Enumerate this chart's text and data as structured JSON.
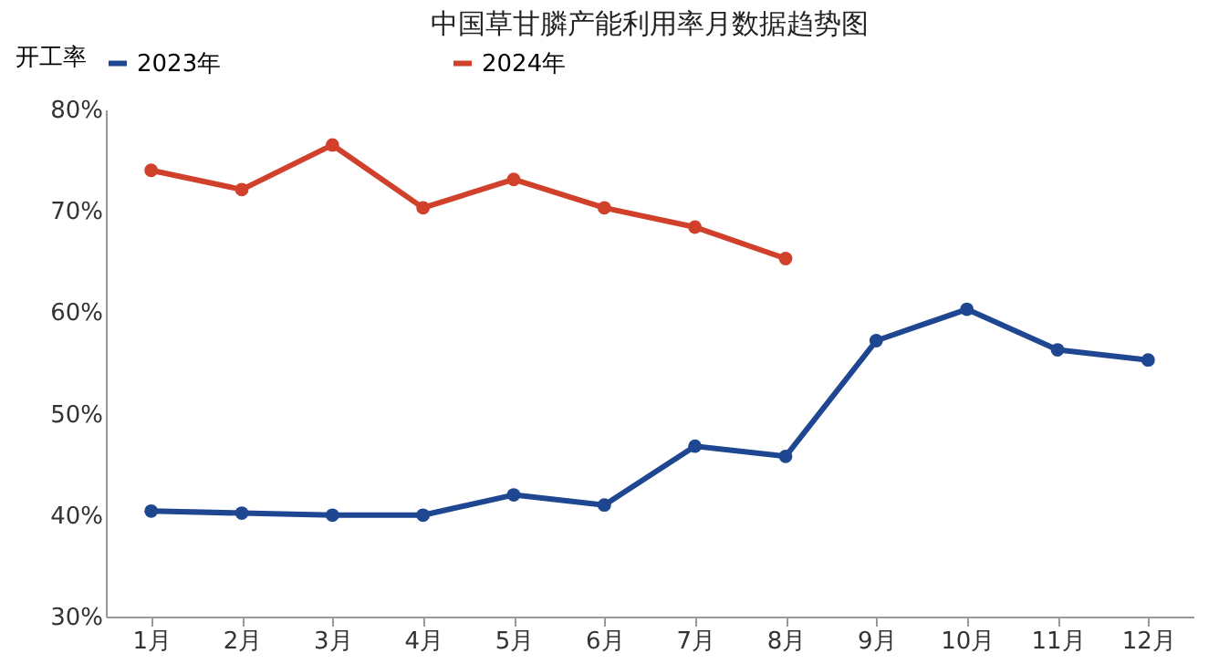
{
  "chart_data": {
    "type": "line",
    "title": "中国草甘膦产能利用率月数据趋势图",
    "ylabel": "开工率",
    "categories": [
      "1月",
      "2月",
      "3月",
      "4月",
      "5月",
      "6月",
      "7月",
      "8月",
      "9月",
      "10月",
      "11月",
      "12月"
    ],
    "series": [
      {
        "name": "2023年",
        "color": "#1f4690",
        "values": [
          40.4,
          40.2,
          40.0,
          40.0,
          42.0,
          41.0,
          46.8,
          45.8,
          57.2,
          60.3,
          56.3,
          55.3
        ]
      },
      {
        "name": "2024年",
        "color": "#d0402b",
        "values": [
          74.0,
          72.1,
          76.5,
          70.3,
          73.1,
          70.3,
          68.4,
          65.3,
          null,
          null,
          null,
          null
        ]
      }
    ],
    "ylim": [
      30,
      80
    ],
    "yticks": [
      {
        "value": 30,
        "label": "30%"
      },
      {
        "value": 40,
        "label": "40%"
      },
      {
        "value": 50,
        "label": "50%"
      },
      {
        "value": 60,
        "label": "60%"
      },
      {
        "value": 70,
        "label": "70%"
      },
      {
        "value": 80,
        "label": "80%"
      }
    ],
    "grid": false,
    "legend": "top",
    "marker": "circle",
    "line_style": "solid"
  }
}
